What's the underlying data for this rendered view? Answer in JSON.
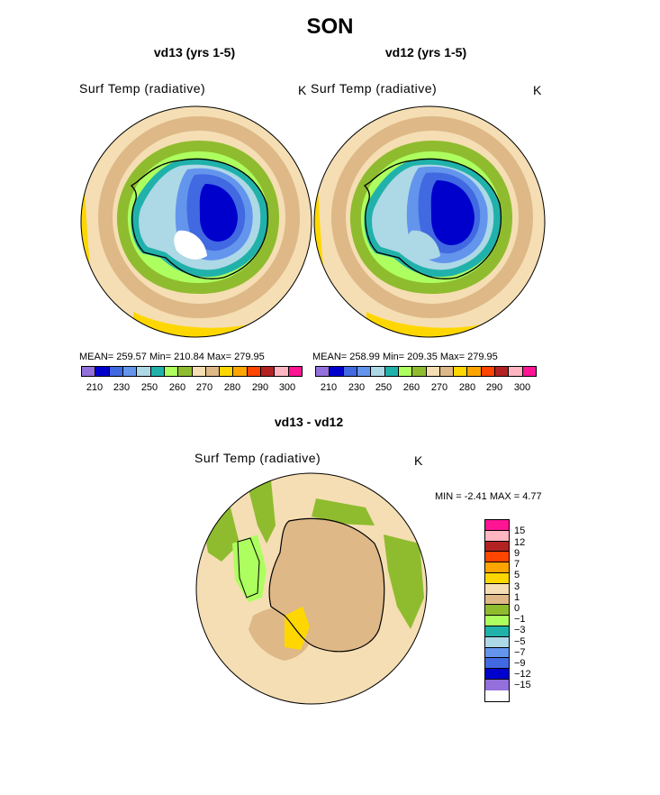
{
  "title": "SON",
  "colors": {
    "purple": "#9370db",
    "navy": "#0000cd",
    "royal": "#4169e1",
    "cornflower": "#6495ed",
    "lightblue": "#add8e6",
    "teal": "#20b2aa",
    "lightgreen": "#adff5f",
    "olive": "#8fbc2f",
    "wheat": "#f5deb3",
    "tan": "#deb887",
    "gold": "#ffd700",
    "orange": "#ffa500",
    "orangered": "#ff4500",
    "firebrick": "#b22222",
    "pink": "#ffb6c1",
    "deeppink": "#ff1493"
  },
  "panels": [
    {
      "title": "vd13 (yrs 1-5)",
      "variable": "Surf Temp (radiative)",
      "units": "K",
      "stats": "MEAN=  259.57   Min=  210.84   Max=  279.95"
    },
    {
      "title": "vd12 (yrs 1-5)",
      "variable": "Surf Temp (radiative)",
      "units": "K",
      "stats": "MEAN=  258.99   Min=  209.35   Max=  279.95"
    }
  ],
  "colorbar_ticks": [
    "210",
    "230",
    "250",
    "260",
    "270",
    "280",
    "290",
    "300"
  ],
  "diff": {
    "title": "vd13 - vd12",
    "variable": "Surf Temp (radiative)",
    "units": "K",
    "stats": "MIN =   -2.41  MAX =    4.77",
    "ticks": [
      "15",
      "12",
      "9",
      "7",
      "5",
      "3",
      "1",
      "0",
      "−1",
      "−3",
      "−5",
      "−7",
      "−9",
      "−12",
      "−15"
    ]
  }
}
